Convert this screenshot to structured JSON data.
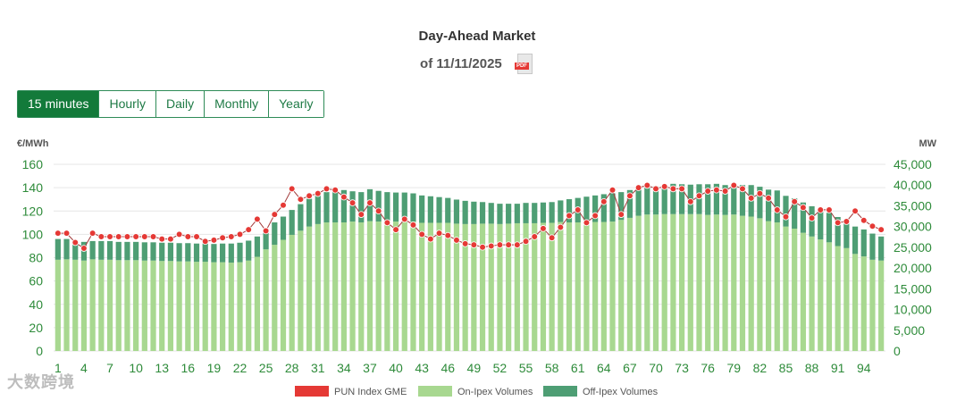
{
  "header": {
    "title": "Day-Ahead Market",
    "subtitle": "of 11/11/2025",
    "pdf_tag": "PDF"
  },
  "tabs": [
    {
      "label": "15 minutes",
      "active": true
    },
    {
      "label": "Hourly",
      "active": false
    },
    {
      "label": "Daily",
      "active": false
    },
    {
      "label": "Monthly",
      "active": false
    },
    {
      "label": "Yearly",
      "active": false
    }
  ],
  "watermark": "大数跨境",
  "chart_data": {
    "type": "bar",
    "left_axis_unit": "€/MWh",
    "right_axis_unit": "MW",
    "ylim_left": [
      0,
      160
    ],
    "ylim_right": [
      0,
      45000
    ],
    "left_ticks": [
      "0",
      "20",
      "40",
      "60",
      "80",
      "100",
      "120",
      "140",
      "160"
    ],
    "right_ticks": [
      "0",
      "5,000",
      "10,000",
      "15,000",
      "20,000",
      "25,000",
      "30,000",
      "35,000",
      "40,000",
      "45,000"
    ],
    "x_tick_labels": [
      "1",
      "4",
      "7",
      "10",
      "13",
      "16",
      "19",
      "22",
      "25",
      "28",
      "31",
      "34",
      "37",
      "40",
      "43",
      "46",
      "49",
      "52",
      "55",
      "58",
      "61",
      "64",
      "67",
      "70",
      "73",
      "76",
      "79",
      "82",
      "85",
      "88",
      "91",
      "94"
    ],
    "grid": true,
    "legend_position": "bottom",
    "colors": {
      "pun": "#e53935",
      "on_ipex": "#a8d890",
      "off_ipex": "#4e9e74"
    },
    "x": [
      1,
      2,
      3,
      4,
      5,
      6,
      7,
      8,
      9,
      10,
      11,
      12,
      13,
      14,
      15,
      16,
      17,
      18,
      19,
      20,
      21,
      22,
      23,
      24,
      25,
      26,
      27,
      28,
      29,
      30,
      31,
      32,
      33,
      34,
      35,
      36,
      37,
      38,
      39,
      40,
      41,
      42,
      43,
      44,
      45,
      46,
      47,
      48,
      49,
      50,
      51,
      52,
      53,
      54,
      55,
      56,
      57,
      58,
      59,
      60,
      61,
      62,
      63,
      64,
      65,
      66,
      67,
      68,
      69,
      70,
      71,
      72,
      73,
      74,
      75,
      76,
      77,
      78,
      79,
      80,
      81,
      82,
      83,
      84,
      85,
      86,
      87,
      88,
      89,
      90,
      91,
      92,
      93,
      94,
      95,
      96
    ],
    "series": [
      {
        "name": "PUN Index GME",
        "kind": "line",
        "axis": "left",
        "values": [
          101,
          101,
          93,
          88,
          101,
          98,
          98,
          98,
          98,
          98,
          98,
          98,
          96,
          96,
          100,
          98,
          98,
          94,
          95,
          97,
          98,
          100,
          104,
          113,
          103,
          117,
          125,
          139,
          130,
          133,
          135,
          139,
          138,
          132,
          127,
          117,
          127,
          120,
          110,
          104,
          113,
          108,
          100,
          96,
          101,
          99,
          95,
          92,
          91,
          89,
          90,
          91,
          91,
          91,
          94,
          98,
          105,
          97,
          106,
          116,
          121,
          110,
          116,
          128,
          138,
          117,
          133,
          140,
          142,
          139,
          141,
          139,
          139,
          128,
          133,
          137,
          138,
          137,
          142,
          139,
          131,
          135,
          131,
          121,
          115,
          128,
          123,
          114,
          121,
          121,
          110,
          111,
          120,
          112,
          107,
          104
        ]
      },
      {
        "name": "On-Ipex Volumes",
        "kind": "bar",
        "axis": "right",
        "stack": "volumes",
        "values": [
          22000,
          22100,
          22000,
          21800,
          22100,
          22000,
          22000,
          21900,
          21900,
          21900,
          21800,
          21800,
          21700,
          21700,
          21600,
          21600,
          21500,
          21500,
          21400,
          21400,
          21300,
          21400,
          21800,
          22700,
          24500,
          25600,
          26800,
          28000,
          29000,
          30000,
          30600,
          31000,
          31000,
          31000,
          31200,
          31000,
          31300,
          31200,
          31300,
          31200,
          31200,
          31200,
          30900,
          30900,
          30900,
          30900,
          30700,
          30600,
          30600,
          30700,
          30700,
          30600,
          30700,
          30800,
          30800,
          30800,
          30900,
          30900,
          31100,
          31000,
          31000,
          31000,
          31100,
          31100,
          31200,
          31600,
          32100,
          32600,
          32900,
          32900,
          33000,
          33000,
          33000,
          33000,
          33000,
          32800,
          32900,
          32800,
          32900,
          32600,
          32400,
          32000,
          31300,
          31000,
          30000,
          29500,
          28500,
          27600,
          26900,
          26200,
          25300,
          24800,
          23400,
          22800,
          22000,
          21800
        ]
      },
      {
        "name": "Off-Ipex Volumes",
        "kind": "bar",
        "axis": "right",
        "stack": "volumes",
        "values": [
          5000,
          4900,
          4600,
          4500,
          4400,
          4500,
          4500,
          4400,
          4400,
          4400,
          4400,
          4400,
          4400,
          4400,
          4400,
          4400,
          4400,
          4400,
          4400,
          4500,
          4600,
          4700,
          4800,
          4900,
          5000,
          5400,
          5600,
          6000,
          6400,
          6700,
          7100,
          7300,
          7700,
          7800,
          7300,
          7300,
          7700,
          7400,
          7000,
          7000,
          7000,
          6800,
          6600,
          6400,
          6200,
          6000,
          5800,
          5600,
          5400,
          5200,
          5000,
          4900,
          4800,
          4700,
          4900,
          4900,
          4900,
          5000,
          5200,
          5600,
          5900,
          6200,
          6400,
          6700,
          6800,
          6700,
          6700,
          6700,
          6800,
          6800,
          7000,
          7300,
          7200,
          7100,
          7200,
          7400,
          7400,
          7200,
          7400,
          7400,
          7600,
          7600,
          7600,
          7700,
          7400,
          7300,
          7300,
          7300,
          7100,
          7100,
          7000,
          6900,
          6600,
          6500,
          6300,
          5800
        ]
      }
    ]
  }
}
